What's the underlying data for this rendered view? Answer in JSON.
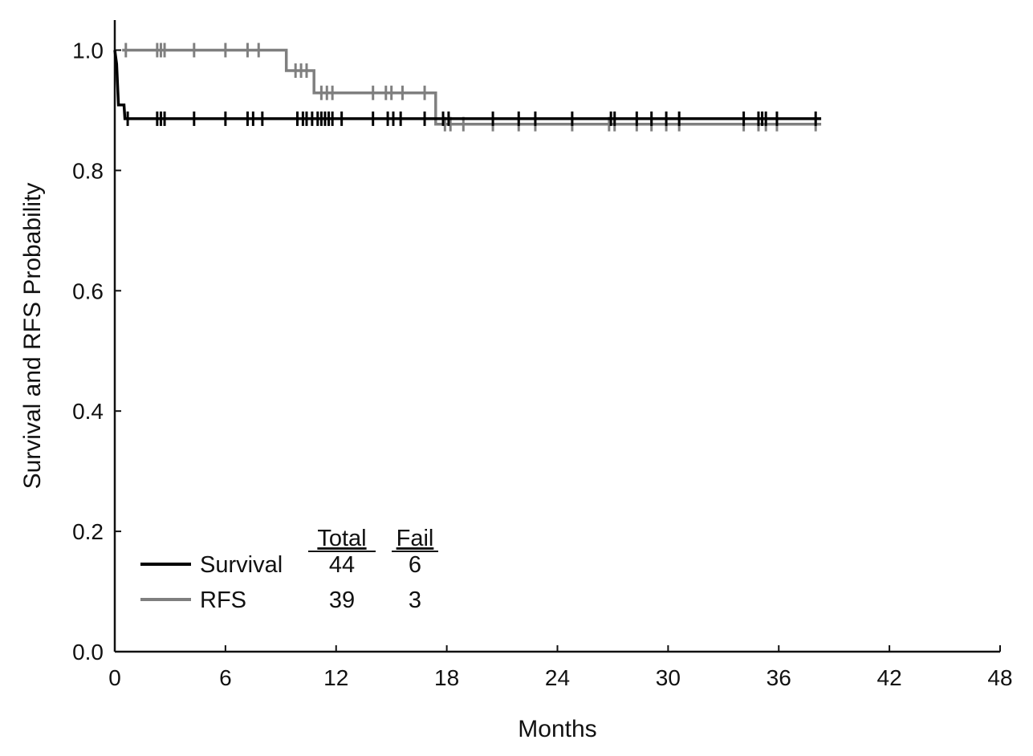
{
  "chart_data": {
    "type": "line",
    "step": true,
    "xlabel": "Months",
    "ylabel": "Survival and RFS Probability",
    "xlim": [
      0,
      48
    ],
    "ylim": [
      0,
      1.05
    ],
    "xticks": [
      0,
      6,
      12,
      18,
      24,
      30,
      36,
      42,
      48
    ],
    "yticks": [
      0.0,
      0.2,
      0.4,
      0.6,
      0.8,
      1.0
    ],
    "xtick_labels": [
      "0",
      "6",
      "12",
      "18",
      "24",
      "30",
      "36",
      "42",
      "48"
    ],
    "ytick_labels": [
      "0.0",
      "0.2",
      "0.4",
      "0.6",
      "0.8",
      "1.0"
    ],
    "grid": false,
    "legend": {
      "placement": "bottom-left",
      "header_total": "Total",
      "header_fail": "Fail"
    },
    "series": [
      {
        "name": "Survival",
        "color": "#000000",
        "total": "44",
        "fail": "6",
        "steps": [
          [
            0.0,
            1.0
          ],
          [
            0.1,
            0.977
          ],
          [
            0.2,
            0.909
          ],
          [
            0.5,
            0.909
          ],
          [
            0.55,
            0.886
          ],
          [
            38.3,
            0.886
          ]
        ],
        "censored": [
          0.7,
          2.3,
          2.5,
          2.7,
          4.3,
          6.0,
          7.2,
          7.5,
          8.0,
          9.9,
          10.2,
          10.4,
          10.7,
          11.0,
          11.2,
          11.4,
          11.6,
          11.8,
          12.3,
          14.0,
          14.8,
          15.1,
          15.5,
          16.8,
          17.8,
          18.1,
          20.5,
          21.9,
          22.8,
          24.8,
          26.9,
          27.1,
          28.3,
          29.1,
          29.9,
          30.6,
          34.1,
          34.9,
          35.1,
          35.3,
          35.9,
          38.0
        ]
      },
      {
        "name": "RFS",
        "color": "#7f7f7f",
        "total": "39",
        "fail": "3",
        "steps": [
          [
            0.4,
            1.0
          ],
          [
            9.3,
            1.0
          ],
          [
            9.3,
            0.966
          ],
          [
            10.8,
            0.966
          ],
          [
            10.8,
            0.929
          ],
          [
            17.4,
            0.929
          ],
          [
            17.4,
            0.877
          ],
          [
            38.3,
            0.877
          ]
        ],
        "censored": [
          0.6,
          2.3,
          2.5,
          2.7,
          4.3,
          6.0,
          7.2,
          7.8,
          9.8,
          10.1,
          10.4,
          11.2,
          11.5,
          11.8,
          14.0,
          14.7,
          15.0,
          15.6,
          16.8,
          17.9,
          18.2,
          18.9,
          20.5,
          21.9,
          22.8,
          24.8,
          26.8,
          27.1,
          28.3,
          29.1,
          29.9,
          30.6,
          34.1,
          34.9,
          35.3,
          35.9,
          38.0
        ]
      }
    ]
  }
}
